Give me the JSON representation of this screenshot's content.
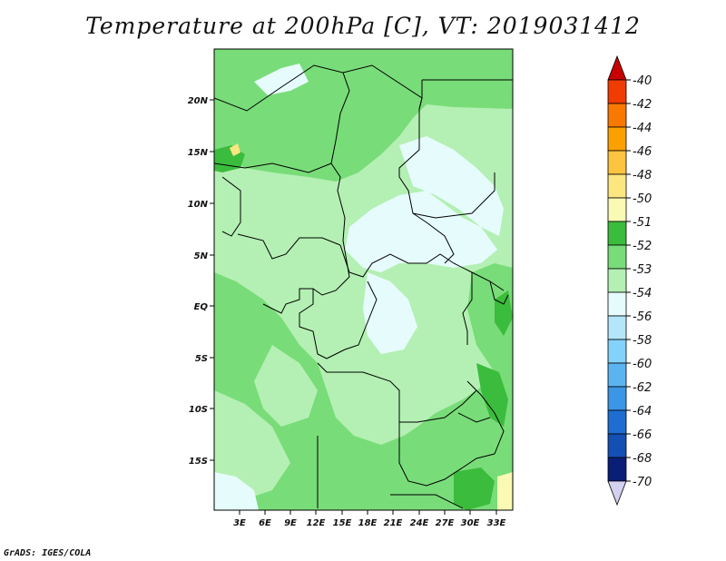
{
  "title": "Temperature at 200hPa [C], VT: 2019031412",
  "credit": "GrADS: IGES/COLA",
  "map": {
    "lat_ticks": [
      "20N",
      "15N",
      "10N",
      "5N",
      "EQ",
      "5S",
      "10S",
      "15S"
    ],
    "lon_ticks": [
      "3E",
      "6E",
      "9E",
      "12E",
      "15E",
      "18E",
      "21E",
      "24E",
      "27E",
      "30E",
      "33E"
    ]
  },
  "colorbar": {
    "levels": [
      {
        "label": "-40",
        "color": "#e01e00"
      },
      {
        "label": "-42",
        "color": "#f03c00"
      },
      {
        "label": "-44",
        "color": "#f87800"
      },
      {
        "label": "-46",
        "color": "#fca000"
      },
      {
        "label": "-48",
        "color": "#fcc440"
      },
      {
        "label": "-50",
        "color": "#fce680"
      },
      {
        "label": "-51",
        "color": "#fafab4"
      },
      {
        "label": "-52",
        "color": "#3cbc3c"
      },
      {
        "label": "-53",
        "color": "#78dc78"
      },
      {
        "label": "-54",
        "color": "#b4f0b4"
      },
      {
        "label": "-56",
        "color": "#e6fcfc"
      },
      {
        "label": "-58",
        "color": "#b4e6fa"
      },
      {
        "label": "-60",
        "color": "#82d2fa"
      },
      {
        "label": "-62",
        "color": "#5ab4f0"
      },
      {
        "label": "-64",
        "color": "#3c96e6"
      },
      {
        "label": "-66",
        "color": "#1e6ed2"
      },
      {
        "label": "-68",
        "color": "#1450b4"
      },
      {
        "label": "-70",
        "color": "#0a1e78"
      }
    ],
    "top_arrow_color": "#c80000",
    "bottom_arrow_color": "#d2d2f0"
  }
}
